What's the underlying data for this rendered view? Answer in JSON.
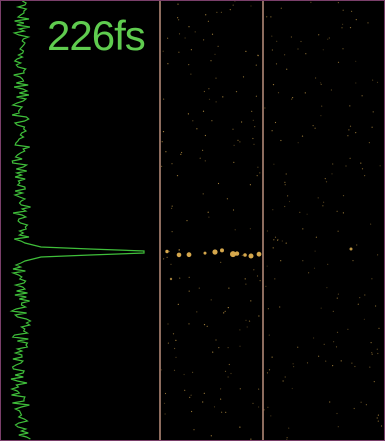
{
  "label": {
    "text": "226fs"
  },
  "colors": {
    "background": "#000000",
    "trace": "#3fbf3a",
    "label": "#5fcc4f",
    "divider": "#c99a86",
    "spots": "#e0b050",
    "frame_border": "#7a3f6a"
  }
}
